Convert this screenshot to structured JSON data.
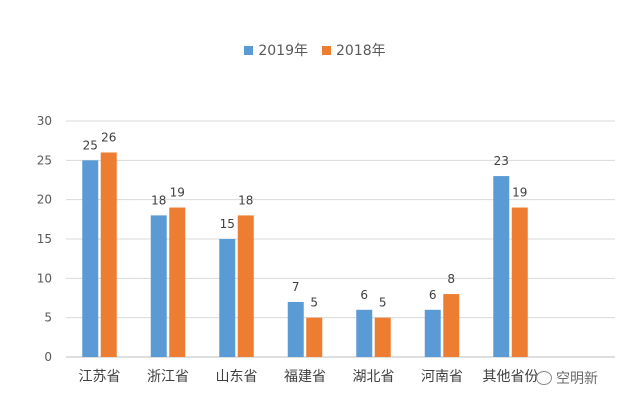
{
  "chart_data": {
    "type": "bar",
    "categories": [
      "江苏省",
      "浙江省",
      "山东省",
      "福建省",
      "湖北省",
      "河南省",
      "其他省份"
    ],
    "series": [
      {
        "name": "2019年",
        "values": [
          25,
          18,
          15,
          7,
          6,
          6,
          23
        ],
        "color": "#5b9bd5"
      },
      {
        "name": "2018年",
        "values": [
          26,
          19,
          18,
          5,
          5,
          8,
          19
        ],
        "color": "#ed7d31"
      }
    ],
    "yticks": [
      0,
      5,
      10,
      15,
      20,
      25,
      30
    ],
    "ylim": [
      0,
      30
    ],
    "grid": true,
    "legend": "top-center"
  },
  "watermark": {
    "text": "空明新"
  }
}
